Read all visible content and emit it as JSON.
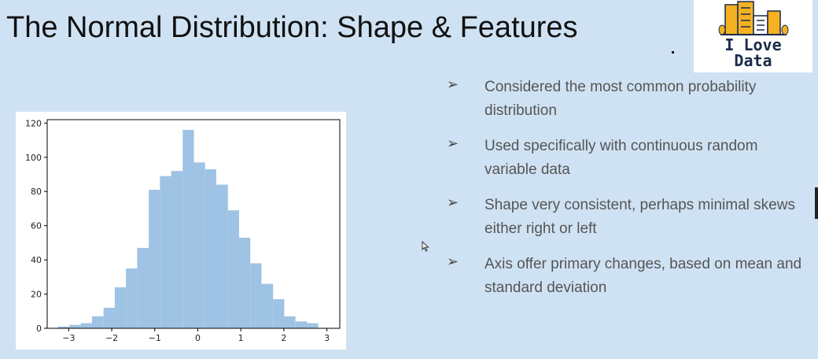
{
  "slide": {
    "title": "The Normal Distribution: Shape & Features",
    "logo": {
      "line1": "I Love",
      "line2": "Data"
    },
    "bullet_glyph": "➢",
    "bullets": [
      "Considered the most common probability distribution",
      "Used specifically with continuous random variable data",
      "Shape very consistent, perhaps minimal skews either right or left",
      "Axis offer primary changes, based on mean and standard deviation"
    ]
  },
  "colors": {
    "background": "#cfe2f3",
    "bar": "#9fc3e4",
    "axis": "#000000",
    "logo_building": "#f4b223",
    "logo_text": "#1b2a4a"
  },
  "icons": {
    "logo": "city-buildings-icon",
    "cursor": "mouse-pointer-icon"
  },
  "chart_data": {
    "type": "bar",
    "title": "",
    "xlabel": "",
    "ylabel": "",
    "xlim": [
      -3.5,
      3.3
    ],
    "ylim": [
      0,
      122
    ],
    "xticks": [
      -3,
      -2,
      -1,
      0,
      1,
      2,
      3
    ],
    "yticks": [
      0,
      20,
      40,
      60,
      80,
      100,
      120
    ],
    "grid": false,
    "bin_edges": [
      -3.25,
      -2.98,
      -2.72,
      -2.46,
      -2.19,
      -1.93,
      -1.67,
      -1.41,
      -1.14,
      -0.88,
      -0.62,
      -0.35,
      -0.09,
      0.17,
      0.43,
      0.7,
      0.96,
      1.22,
      1.48,
      1.75,
      2.01,
      2.27,
      2.54,
      2.8,
      3.06
    ],
    "values": [
      1,
      2,
      3,
      7,
      12,
      24,
      35,
      47,
      81,
      89,
      92,
      116,
      97,
      93,
      84,
      69,
      53,
      38,
      26,
      17,
      7,
      4,
      3,
      0
    ]
  }
}
